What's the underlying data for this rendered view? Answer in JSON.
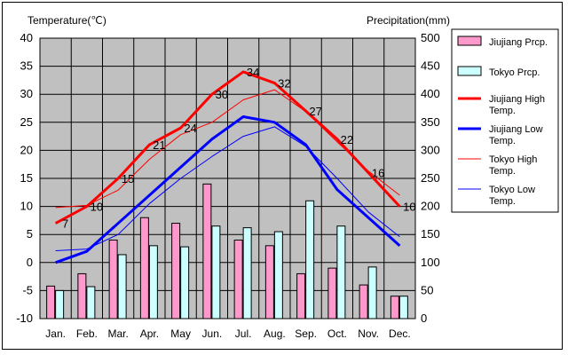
{
  "chart_data": {
    "type": "bar+line",
    "y_left_label": "Temperature(℃)",
    "y_right_label": "Precipitation(mm)",
    "categories": [
      "Jan.",
      "Feb.",
      "Mar.",
      "Apr.",
      "May",
      "Jun.",
      "Jul.",
      "Aug.",
      "Sep.",
      "Oct.",
      "Nov.",
      "Dec."
    ],
    "ylim_left": [
      -10,
      40
    ],
    "yticks_left": [
      "40",
      "35",
      "30",
      "25",
      "20",
      "15",
      "10",
      "5",
      "0",
      "-5",
      "-10"
    ],
    "ylim_right": [
      0,
      500
    ],
    "yticks_right": [
      "500",
      "450",
      "400",
      "350",
      "300",
      "250",
      "200",
      "150",
      "100",
      "50",
      "0"
    ],
    "grid": true,
    "legend_position": "right",
    "bar_series": [
      {
        "name": "Jiujiang Prcp.",
        "color": "#ff99cc",
        "values": [
          58,
          80,
          140,
          180,
          170,
          240,
          140,
          130,
          80,
          90,
          60,
          40
        ]
      },
      {
        "name": "Tokyo Prcp.",
        "color": "#ccffff",
        "values": [
          50,
          57,
          114,
          130,
          128,
          165,
          162,
          155,
          210,
          165,
          92,
          40
        ]
      }
    ],
    "line_series": [
      {
        "name": "Jiujiang High Temp.",
        "color": "#ff0000",
        "width": "thick",
        "values": [
          7,
          10,
          15,
          21,
          24,
          30,
          34,
          32,
          27,
          22,
          16,
          10
        ]
      },
      {
        "name": "Jiujiang Low Temp.",
        "color": "#0000ff",
        "width": "thick",
        "values": [
          0,
          2,
          7,
          12,
          17,
          22,
          26,
          25,
          21,
          13,
          8,
          3
        ]
      },
      {
        "name": "Tokyo High Temp.",
        "color": "#ff0000",
        "width": "thin",
        "values": [
          9.8,
          10.2,
          12.9,
          18.4,
          22.8,
          25.0,
          29.0,
          30.8,
          26.9,
          21.5,
          16.3,
          12.0
        ]
      },
      {
        "name": "Tokyo Low Temp.",
        "color": "#0000ff",
        "width": "thin",
        "values": [
          2.1,
          2.4,
          5.0,
          10.5,
          15.0,
          18.9,
          22.5,
          24.2,
          20.7,
          15.0,
          9.0,
          4.6
        ]
      }
    ],
    "data_labels": [
      "7",
      "10",
      "15",
      "21",
      "24",
      "30",
      "34",
      "32",
      "27",
      "22",
      "16",
      "10"
    ]
  }
}
